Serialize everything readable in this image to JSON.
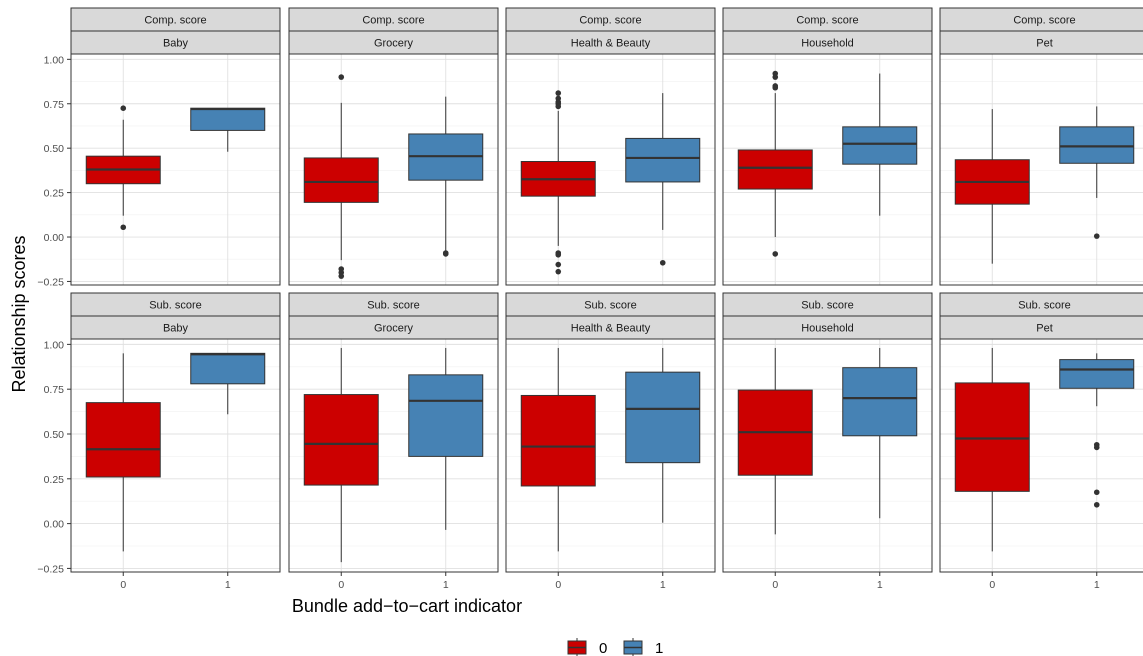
{
  "chart_data": {
    "type": "boxplot",
    "xlabel": "Bundle add−to−cart indicator",
    "ylabel": "Relationship scores",
    "x_categories": [
      "0",
      "1"
    ],
    "legend": {
      "placement": "bottom",
      "entries": [
        "0",
        "1"
      ]
    },
    "colors": {
      "0": "#cc0000",
      "1": "#4682b4"
    },
    "grid": true,
    "row_strips": [
      "Comp. score",
      "Sub. score"
    ],
    "col_strips": [
      "Baby",
      "Grocery",
      "Health & Beauty",
      "Household",
      "Pet"
    ],
    "ylim": [
      -0.27,
      1.03
    ],
    "yticks": [
      -0.25,
      0,
      0.25,
      0.5,
      0.75,
      1
    ],
    "ytick_labels": [
      "−0.25",
      "0.00",
      "0.25",
      "0.50",
      "0.75",
      "1.00"
    ],
    "panels": [
      {
        "row": "Comp. score",
        "col": "Baby",
        "boxes": [
          {
            "x": "0",
            "whisker_low": 0.12,
            "q1": 0.3,
            "median": 0.38,
            "q3": 0.455,
            "whisker_high": 0.66,
            "outliers": [
              0.725,
              0.055
            ]
          },
          {
            "x": "1",
            "whisker_low": 0.48,
            "q1": 0.6,
            "median": 0.72,
            "q3": 0.725,
            "whisker_high": 0.725,
            "outliers": []
          }
        ]
      },
      {
        "row": "Comp. score",
        "col": "Grocery",
        "boxes": [
          {
            "x": "0",
            "whisker_low": -0.13,
            "q1": 0.195,
            "median": 0.31,
            "q3": 0.445,
            "whisker_high": 0.755,
            "outliers": [
              0.9,
              -0.18,
              -0.2,
              -0.22
            ]
          },
          {
            "x": "1",
            "whisker_low": -0.08,
            "q1": 0.32,
            "median": 0.455,
            "q3": 0.58,
            "whisker_high": 0.79,
            "outliers": [
              -0.09,
              -0.095
            ]
          }
        ]
      },
      {
        "row": "Comp. score",
        "col": "Health & Beauty",
        "boxes": [
          {
            "x": "0",
            "whisker_low": -0.05,
            "q1": 0.23,
            "median": 0.325,
            "q3": 0.425,
            "whisker_high": 0.71,
            "outliers": [
              0.81,
              0.78,
              0.76,
              0.75,
              0.735,
              -0.09,
              -0.1,
              -0.155,
              -0.195
            ]
          },
          {
            "x": "1",
            "whisker_low": 0.04,
            "q1": 0.31,
            "median": 0.445,
            "q3": 0.555,
            "whisker_high": 0.81,
            "outliers": [
              -0.145
            ]
          }
        ]
      },
      {
        "row": "Comp. score",
        "col": "Household",
        "boxes": [
          {
            "x": "0",
            "whisker_low": 0.0,
            "q1": 0.27,
            "median": 0.39,
            "q3": 0.49,
            "whisker_high": 0.81,
            "outliers": [
              0.92,
              0.9,
              0.85,
              0.84,
              -0.095
            ]
          },
          {
            "x": "1",
            "whisker_low": 0.12,
            "q1": 0.41,
            "median": 0.525,
            "q3": 0.62,
            "whisker_high": 0.92,
            "outliers": []
          }
        ]
      },
      {
        "row": "Comp. score",
        "col": "Pet",
        "boxes": [
          {
            "x": "0",
            "whisker_low": -0.15,
            "q1": 0.185,
            "median": 0.31,
            "q3": 0.435,
            "whisker_high": 0.72,
            "outliers": []
          },
          {
            "x": "1",
            "whisker_low": 0.22,
            "q1": 0.415,
            "median": 0.51,
            "q3": 0.62,
            "whisker_high": 0.735,
            "outliers": [
              0.005
            ]
          }
        ]
      },
      {
        "row": "Sub. score",
        "col": "Baby",
        "boxes": [
          {
            "x": "0",
            "whisker_low": -0.155,
            "q1": 0.26,
            "median": 0.415,
            "q3": 0.675,
            "whisker_high": 0.95,
            "outliers": []
          },
          {
            "x": "1",
            "whisker_low": 0.61,
            "q1": 0.78,
            "median": 0.945,
            "q3": 0.95,
            "whisker_high": 0.95,
            "outliers": []
          }
        ]
      },
      {
        "row": "Sub. score",
        "col": "Grocery",
        "boxes": [
          {
            "x": "0",
            "whisker_low": -0.215,
            "q1": 0.215,
            "median": 0.445,
            "q3": 0.72,
            "whisker_high": 0.98,
            "outliers": []
          },
          {
            "x": "1",
            "whisker_low": -0.035,
            "q1": 0.375,
            "median": 0.685,
            "q3": 0.83,
            "whisker_high": 0.98,
            "outliers": []
          }
        ]
      },
      {
        "row": "Sub. score",
        "col": "Health & Beauty",
        "boxes": [
          {
            "x": "0",
            "whisker_low": -0.155,
            "q1": 0.21,
            "median": 0.43,
            "q3": 0.715,
            "whisker_high": 0.98,
            "outliers": []
          },
          {
            "x": "1",
            "whisker_low": 0.005,
            "q1": 0.34,
            "median": 0.64,
            "q3": 0.845,
            "whisker_high": 0.98,
            "outliers": []
          }
        ]
      },
      {
        "row": "Sub. score",
        "col": "Household",
        "boxes": [
          {
            "x": "0",
            "whisker_low": -0.06,
            "q1": 0.27,
            "median": 0.51,
            "q3": 0.745,
            "whisker_high": 0.98,
            "outliers": []
          },
          {
            "x": "1",
            "whisker_low": 0.03,
            "q1": 0.49,
            "median": 0.7,
            "q3": 0.87,
            "whisker_high": 0.98,
            "outliers": []
          }
        ]
      },
      {
        "row": "Sub. score",
        "col": "Pet",
        "boxes": [
          {
            "x": "0",
            "whisker_low": -0.155,
            "q1": 0.18,
            "median": 0.475,
            "q3": 0.785,
            "whisker_high": 0.98,
            "outliers": []
          },
          {
            "x": "1",
            "whisker_low": 0.655,
            "q1": 0.755,
            "median": 0.86,
            "q3": 0.915,
            "whisker_high": 0.95,
            "outliers": [
              0.44,
              0.425,
              0.175,
              0.105
            ]
          }
        ]
      }
    ]
  }
}
